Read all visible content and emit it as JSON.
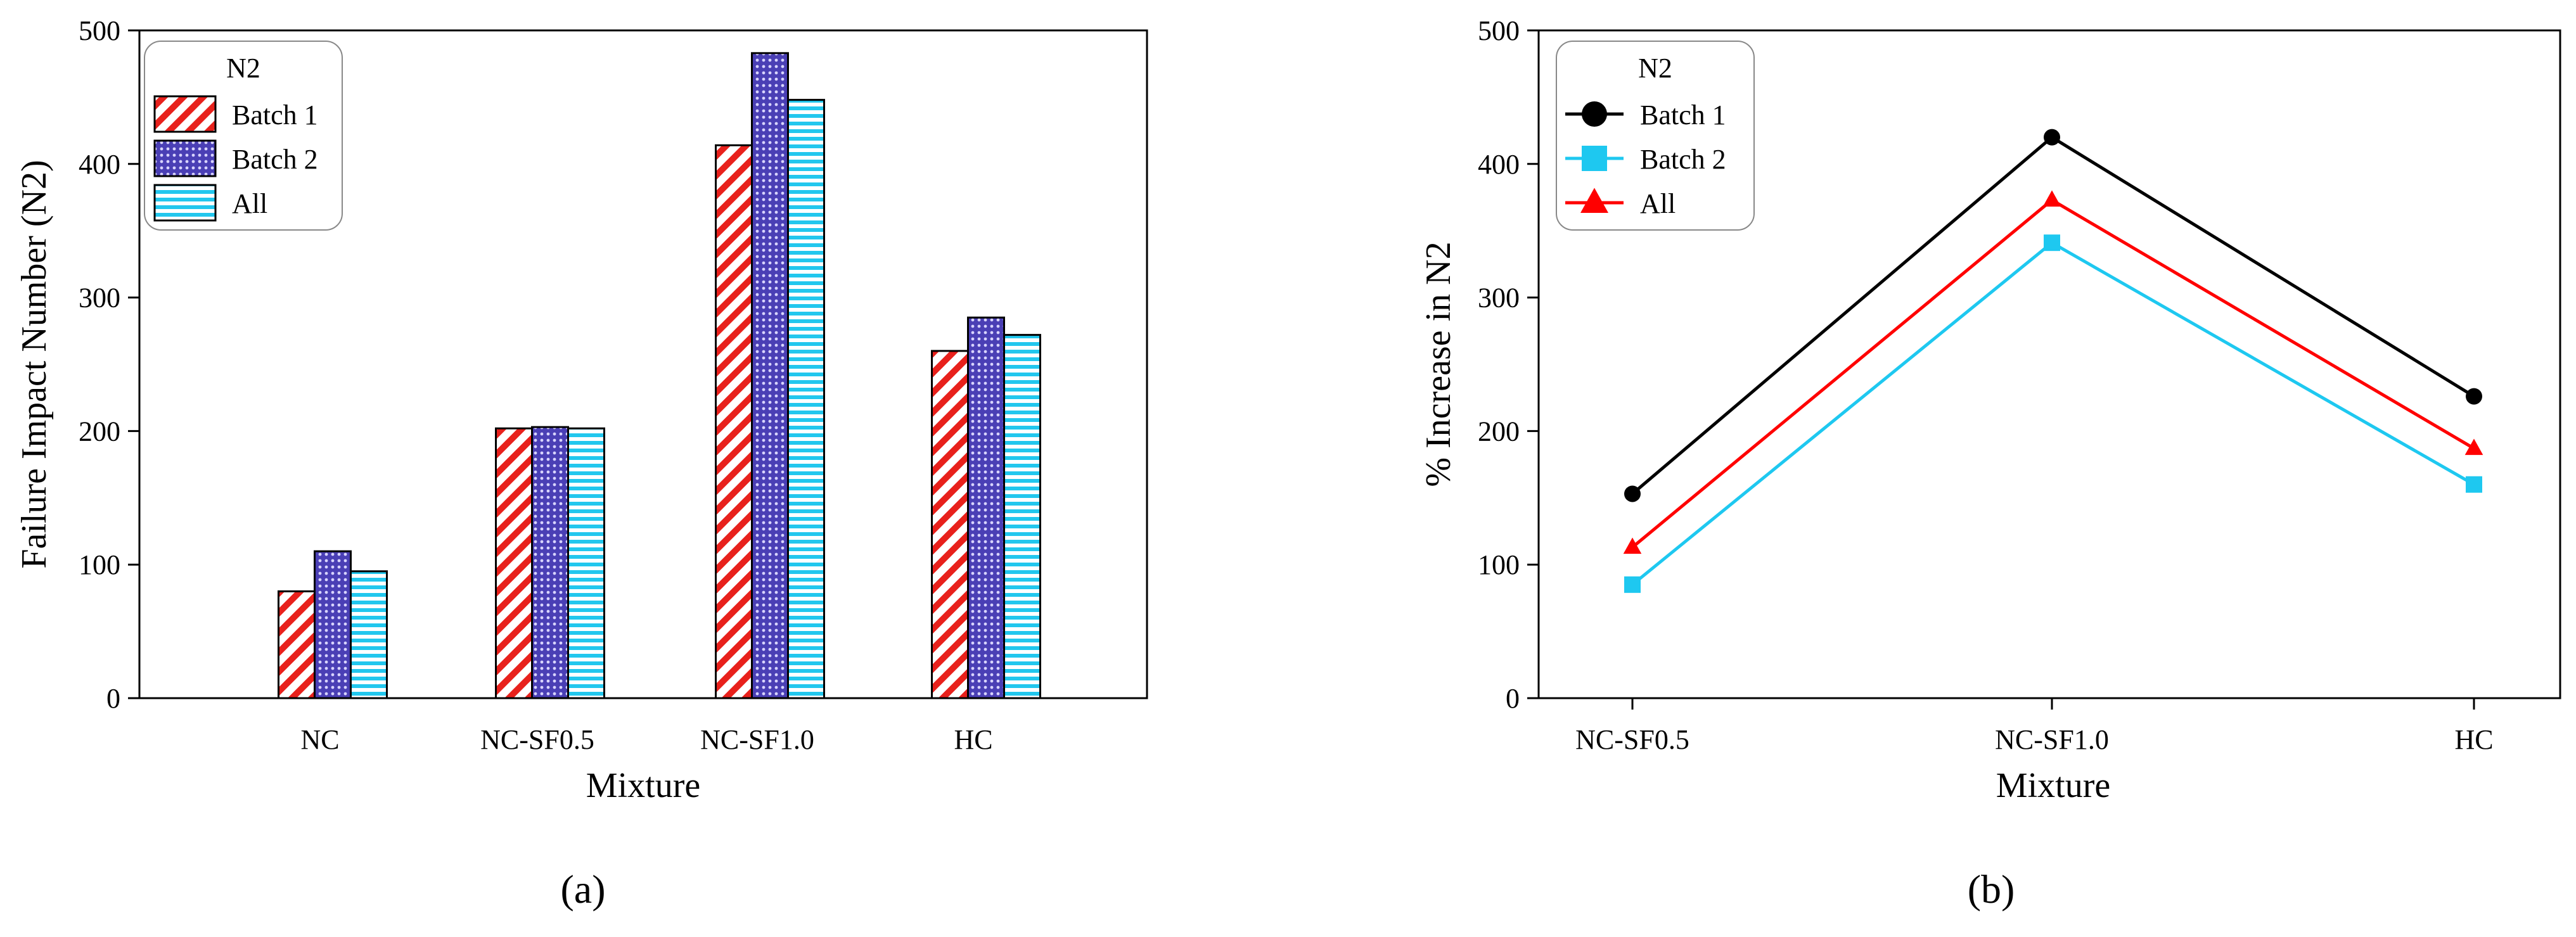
{
  "chart_data": [
    {
      "type": "bar",
      "panel_label": "(a)",
      "categories": [
        "NC",
        "NC-SF0.5",
        "NC-SF1.0",
        "HC"
      ],
      "series": [
        {
          "name": "Batch 1",
          "values": [
            80,
            202,
            414,
            260
          ],
          "color": "#e8211c"
        },
        {
          "name": "Batch 2",
          "values": [
            110,
            203,
            483,
            285
          ],
          "color": "#4a3fb5"
        },
        {
          "name": "All",
          "values": [
            95,
            202,
            448,
            272
          ],
          "color": "#22c7ee"
        }
      ],
      "xlabel": "Mixture",
      "ylabel": "Failure Impact Number (N2)",
      "ylim": [
        0,
        500
      ],
      "yticks": [
        "0",
        "100",
        "200",
        "300",
        "400",
        "500"
      ],
      "legend": {
        "title": "N2",
        "position": "top-left"
      }
    },
    {
      "type": "line",
      "panel_label": "(b)",
      "categories": [
        "NC-SF0.5",
        "NC-SF1.0",
        "HC"
      ],
      "series": [
        {
          "name": "Batch 1",
          "values": [
            153,
            420,
            226
          ],
          "color": "#000000",
          "marker": "circle"
        },
        {
          "name": "Batch 2",
          "values": [
            85,
            341,
            160
          ],
          "color": "#1ec8f0",
          "marker": "square"
        },
        {
          "name": "All",
          "values": [
            113,
            373,
            187
          ],
          "color": "#ff0000",
          "marker": "triangle"
        }
      ],
      "xlabel": "Mixture",
      "ylabel": "% Increase in N2",
      "ylim": [
        0,
        500
      ],
      "yticks": [
        "0",
        "100",
        "200",
        "300",
        "400",
        "500"
      ],
      "legend": {
        "title": "N2",
        "position": "top-left"
      }
    }
  ]
}
